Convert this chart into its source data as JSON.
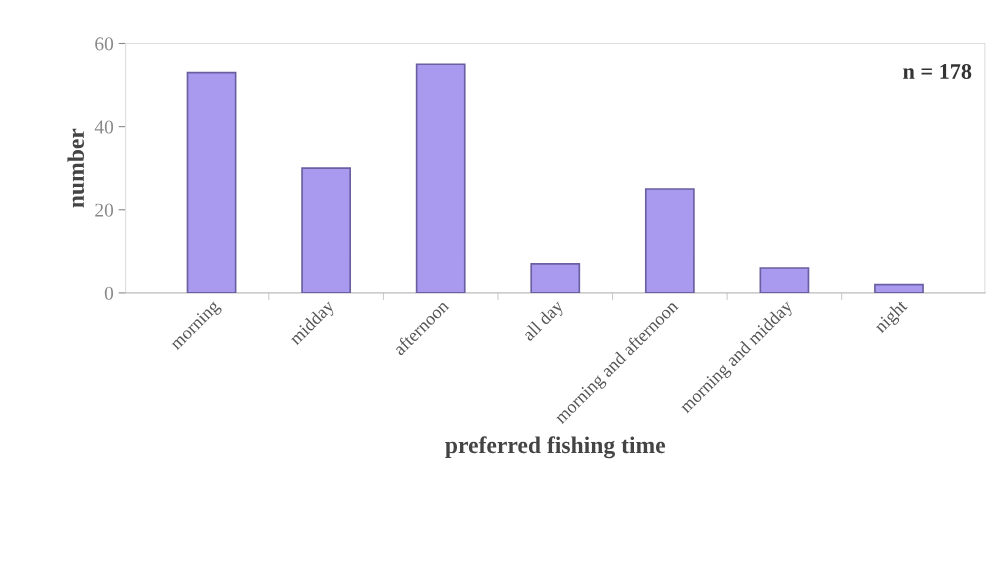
{
  "chart_data": {
    "type": "bar",
    "xlabel": "preferred fishing time",
    "ylabel": "number",
    "categories": [
      "morning",
      "midday",
      "afternoon",
      "all day",
      "morning and afternoon",
      "morning and midday",
      "night"
    ],
    "values": [
      53,
      30,
      55,
      7,
      25,
      6,
      2
    ],
    "color": "#a99af0",
    "ylim": [
      0,
      60
    ],
    "yticks": [
      0,
      20,
      40,
      60
    ],
    "grid": false,
    "annotations": [
      "n = 178"
    ]
  }
}
